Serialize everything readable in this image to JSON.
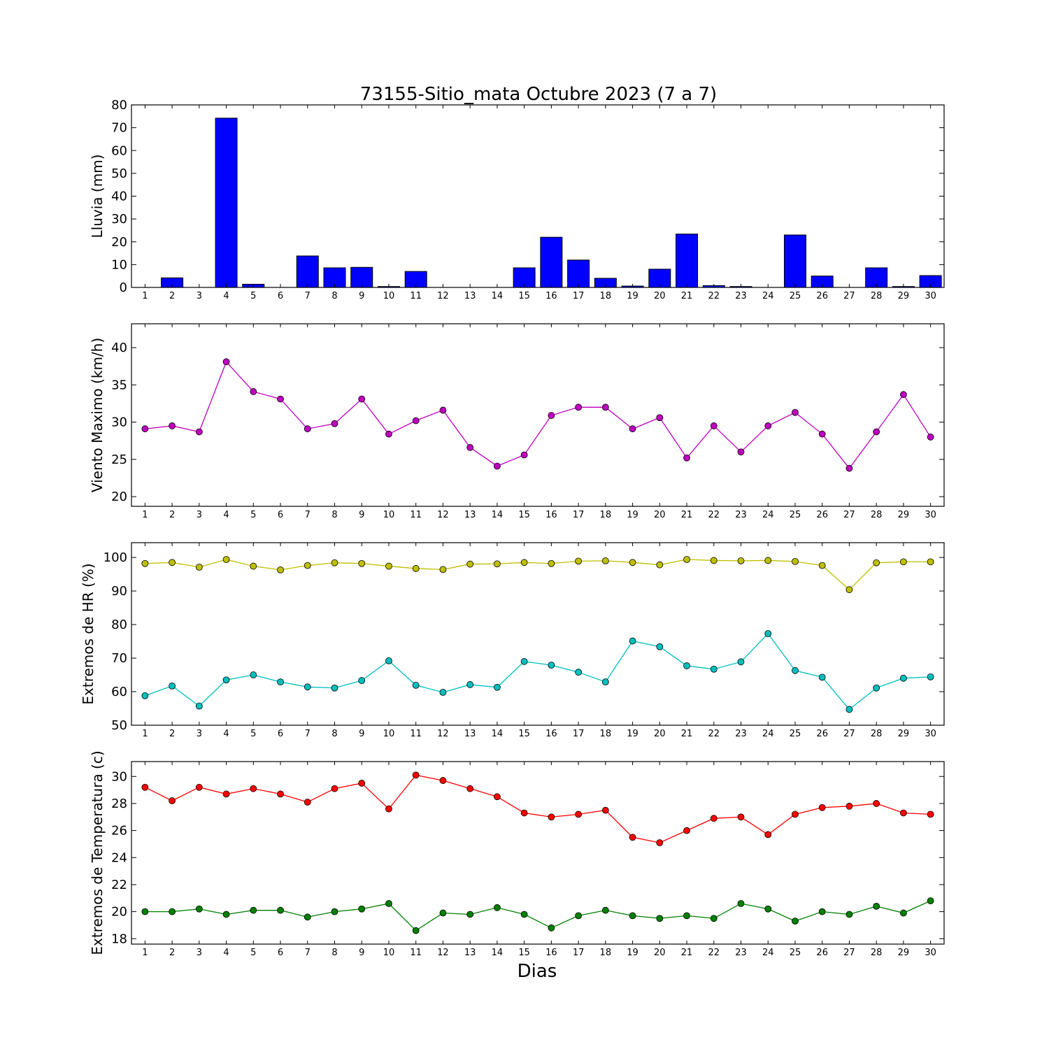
{
  "title": "73155-Sitio_mata Octubre 2023  (7 a 7)",
  "xlabel": "Dias",
  "colors": {
    "rain": "#0000ff",
    "wind": "#bf00bf",
    "hr_max": "#bfbf00",
    "hr_min": "#00bfbf",
    "t_max": "#ff0000",
    "t_min": "#008000"
  },
  "chart_data": [
    {
      "type": "bar",
      "ylabel": "Lluvia (mm)",
      "ylim": [
        0,
        80
      ],
      "yticks": [
        0,
        10,
        20,
        30,
        40,
        50,
        60,
        70,
        80
      ],
      "x": [
        1,
        2,
        3,
        4,
        5,
        6,
        7,
        8,
        9,
        10,
        11,
        12,
        13,
        14,
        15,
        16,
        17,
        18,
        19,
        20,
        21,
        22,
        23,
        24,
        25,
        26,
        27,
        28,
        29,
        30
      ],
      "values": [
        0,
        4.2,
        0,
        74.2,
        1.4,
        0,
        13.8,
        8.6,
        8.8,
        0.4,
        7.0,
        0,
        0,
        0,
        8.6,
        22.0,
        12.0,
        4.0,
        0.6,
        8.0,
        23.4,
        0.8,
        0.4,
        0,
        23.0,
        5.0,
        0,
        8.6,
        0.4,
        5.2
      ],
      "grid": false
    },
    {
      "type": "line",
      "ylabel": "Viento Maximo (km/h)",
      "ylim": [
        18.7,
        43.2
      ],
      "yticks": [
        20,
        25,
        30,
        35,
        40
      ],
      "x": [
        1,
        2,
        3,
        4,
        5,
        6,
        7,
        8,
        9,
        10,
        11,
        12,
        13,
        14,
        15,
        16,
        17,
        18,
        19,
        20,
        21,
        22,
        23,
        24,
        25,
        26,
        27,
        28,
        29,
        30
      ],
      "series": [
        {
          "values": [
            29.1,
            29.5,
            28.7,
            38.1,
            34.1,
            33.1,
            29.1,
            29.8,
            33.1,
            28.4,
            30.2,
            31.6,
            26.6,
            24.1,
            25.6,
            30.9,
            32.0,
            32.0,
            29.1,
            30.6,
            25.2,
            29.5,
            26.0,
            29.5,
            31.3,
            28.4,
            23.8,
            28.7,
            33.7,
            28.0
          ]
        }
      ],
      "grid": false
    },
    {
      "type": "line",
      "ylabel": "Extremos de HR (%)",
      "ylim": [
        50,
        104.4
      ],
      "yticks": [
        50,
        60,
        70,
        80,
        90,
        100
      ],
      "x": [
        1,
        2,
        3,
        4,
        5,
        6,
        7,
        8,
        9,
        10,
        11,
        12,
        13,
        14,
        15,
        16,
        17,
        18,
        19,
        20,
        21,
        22,
        23,
        24,
        25,
        26,
        27,
        28,
        29,
        30
      ],
      "series": [
        {
          "values": [
            98.2,
            98.5,
            97.1,
            99.4,
            97.4,
            96.3,
            97.6,
            98.4,
            98.2,
            97.4,
            96.7,
            96.4,
            98.0,
            98.1,
            98.5,
            98.2,
            98.9,
            99.0,
            98.5,
            97.8,
            99.4,
            99.1,
            99.0,
            99.1,
            98.8,
            97.6,
            90.4,
            98.4,
            98.7,
            98.7
          ]
        },
        {
          "values": [
            58.8,
            61.7,
            55.7,
            63.5,
            65.0,
            62.9,
            61.4,
            61.1,
            63.3,
            69.2,
            61.9,
            59.8,
            62.1,
            61.3,
            69.0,
            67.9,
            65.8,
            62.9,
            75.1,
            73.4,
            67.7,
            66.7,
            68.9,
            77.3,
            66.3,
            64.3,
            54.7,
            61.1,
            64.0,
            64.4
          ]
        }
      ],
      "grid": false
    },
    {
      "type": "line",
      "ylabel": "Extremos de Temperatura (c)",
      "ylim": [
        17.6,
        31.1
      ],
      "yticks": [
        18,
        20,
        22,
        24,
        26,
        28,
        30
      ],
      "x": [
        1,
        2,
        3,
        4,
        5,
        6,
        7,
        8,
        9,
        10,
        11,
        12,
        13,
        14,
        15,
        16,
        17,
        18,
        19,
        20,
        21,
        22,
        23,
        24,
        25,
        26,
        27,
        28,
        29,
        30
      ],
      "series": [
        {
          "values": [
            29.2,
            28.2,
            29.2,
            28.7,
            29.1,
            28.7,
            28.1,
            29.1,
            29.5,
            27.6,
            30.1,
            29.7,
            29.1,
            28.5,
            27.3,
            27.0,
            27.2,
            27.5,
            25.5,
            25.1,
            26.0,
            26.9,
            27.0,
            25.7,
            27.2,
            27.7,
            27.8,
            28.0,
            27.3,
            27.2
          ]
        },
        {
          "values": [
            20.0,
            20.0,
            20.2,
            19.8,
            20.1,
            20.1,
            19.6,
            20.0,
            20.2,
            20.6,
            18.6,
            19.9,
            19.8,
            20.3,
            19.8,
            18.8,
            19.7,
            20.1,
            19.7,
            19.5,
            19.7,
            19.5,
            20.6,
            20.2,
            19.3,
            20.0,
            19.8,
            20.4,
            19.9,
            20.8
          ]
        }
      ],
      "grid": false
    }
  ]
}
